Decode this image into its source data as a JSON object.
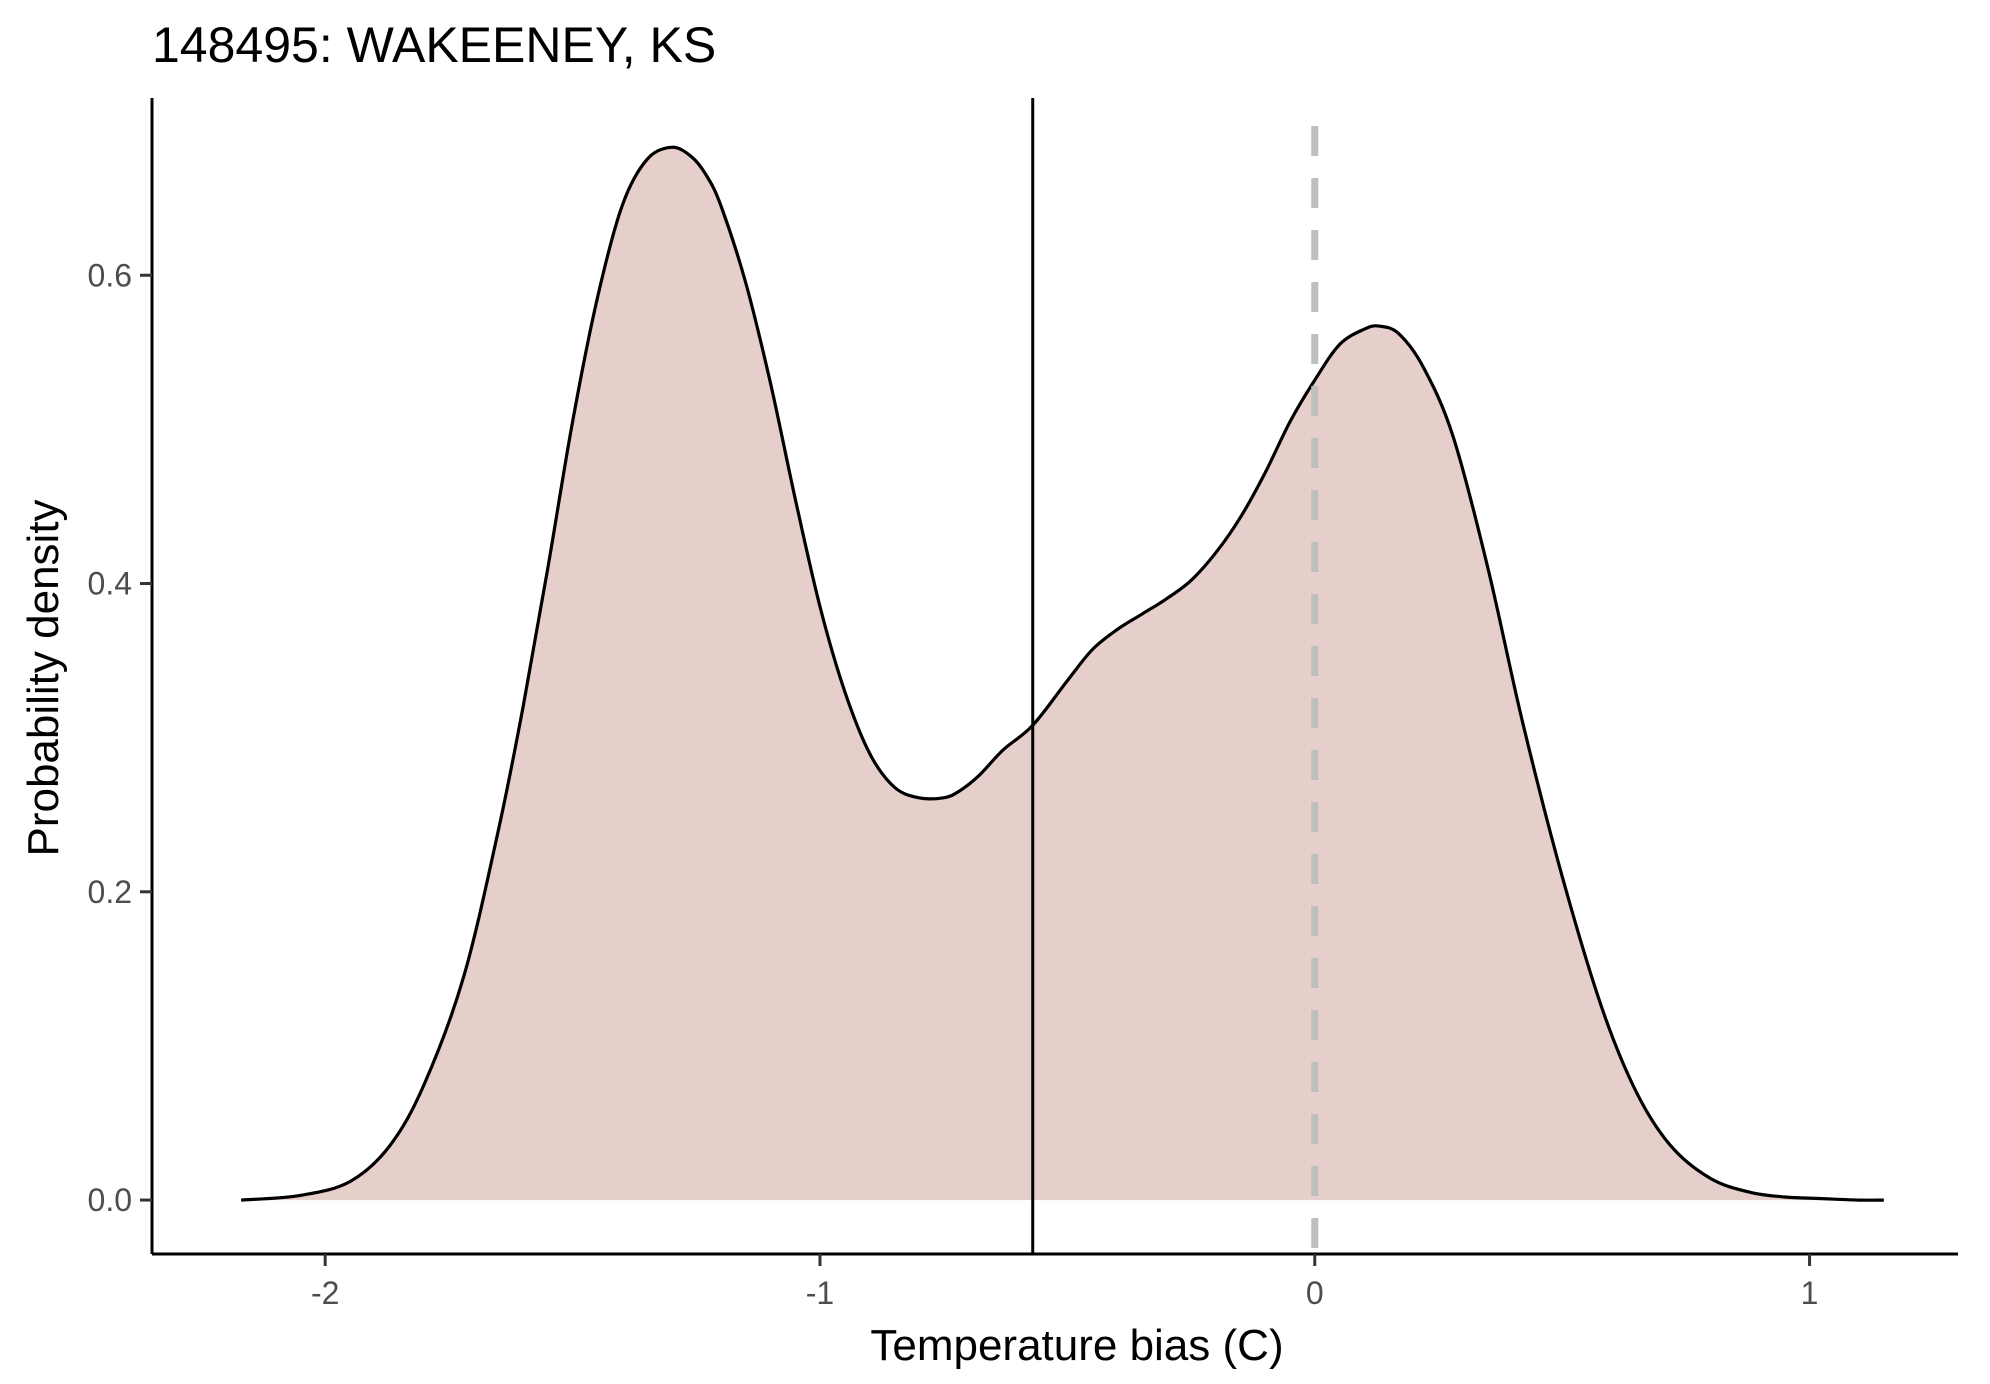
{
  "chart_data": {
    "type": "area",
    "title": "148495: WAKEENEY, KS",
    "xlabel": "Temperature bias (C)",
    "ylabel": "Probability density",
    "xlim": [
      -2.35,
      1.3
    ],
    "ylim": [
      -0.035,
      0.715
    ],
    "x_ticks": [
      {
        "value": -2,
        "label": "-2"
      },
      {
        "value": -1,
        "label": "-1"
      },
      {
        "value": 0,
        "label": "0"
      },
      {
        "value": 1,
        "label": "1"
      }
    ],
    "y_ticks": [
      {
        "value": 0.0,
        "label": "0.0"
      },
      {
        "value": 0.2,
        "label": "0.2"
      },
      {
        "value": 0.4,
        "label": "0.4"
      },
      {
        "value": 0.6,
        "label": "0.6"
      }
    ],
    "grid": false,
    "legend": "none",
    "fill_color": "#e6cfca",
    "line_color": "#000000",
    "reference_lines": [
      {
        "x": -0.57,
        "style": "solid",
        "color": "#000000"
      },
      {
        "x": 0.0,
        "style": "dashed",
        "color": "#bebebe"
      }
    ],
    "series": [
      {
        "x": [
          -2.17,
          -2.05,
          -1.95,
          -1.87,
          -1.8,
          -1.72,
          -1.65,
          -1.6,
          -1.55,
          -1.5,
          -1.45,
          -1.4,
          -1.35,
          -1.3,
          -1.26,
          -1.23,
          -1.2,
          -1.15,
          -1.1,
          -1.05,
          -1.0,
          -0.95,
          -0.9,
          -0.85,
          -0.8,
          -0.75,
          -0.72,
          -0.68,
          -0.63,
          -0.57,
          -0.5,
          -0.45,
          -0.4,
          -0.35,
          -0.3,
          -0.25,
          -0.2,
          -0.15,
          -0.1,
          -0.05,
          0.0,
          0.05,
          0.1,
          0.13,
          0.17,
          0.22,
          0.28,
          0.35,
          0.42,
          0.5,
          0.58,
          0.65,
          0.72,
          0.8,
          0.88,
          0.95,
          1.02,
          1.1,
          1.15
        ],
        "y": [
          0.0,
          0.003,
          0.012,
          0.035,
          0.075,
          0.145,
          0.24,
          0.32,
          0.41,
          0.505,
          0.585,
          0.645,
          0.675,
          0.683,
          0.677,
          0.665,
          0.645,
          0.595,
          0.53,
          0.455,
          0.385,
          0.33,
          0.29,
          0.268,
          0.261,
          0.261,
          0.265,
          0.275,
          0.292,
          0.308,
          0.337,
          0.357,
          0.37,
          0.38,
          0.39,
          0.402,
          0.42,
          0.443,
          0.472,
          0.505,
          0.532,
          0.555,
          0.565,
          0.567,
          0.562,
          0.54,
          0.495,
          0.41,
          0.31,
          0.21,
          0.125,
          0.07,
          0.035,
          0.014,
          0.005,
          0.002,
          0.001,
          0.0,
          0.0
        ]
      }
    ]
  }
}
